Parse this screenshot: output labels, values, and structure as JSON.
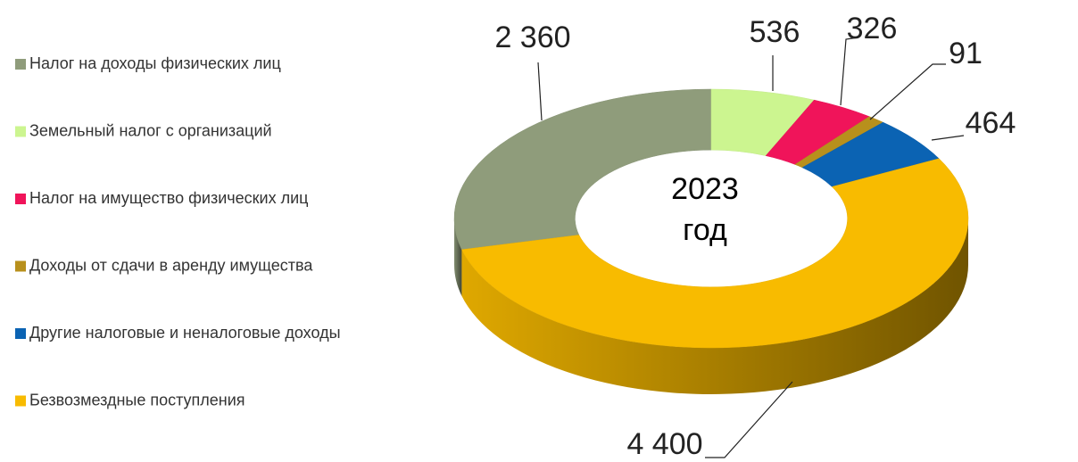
{
  "chart_data": {
    "type": "donut3d",
    "series": [
      {
        "name": "Налог на доходы физических лиц",
        "color": "#8f9c7b"
      },
      {
        "name": "Земельный налог с организаций",
        "color": "#ccf590"
      },
      {
        "name": "Налог на имущество физических лиц",
        "color": "#f0145a"
      },
      {
        "name": "Доходы от сдачи в аренду имущества",
        "color": "#b8901c"
      },
      {
        "name": "Другие налоговые и неналоговые доходы",
        "color": "#0b63b3"
      },
      {
        "name": "Безвозмездные поступления",
        "color": "#f8bb00"
      }
    ],
    "values": [
      2360,
      536,
      326,
      91,
      464,
      4400
    ],
    "value_labels": [
      "2 360",
      "536",
      "326",
      "91",
      "464",
      "4 400"
    ],
    "center_label": [
      "2023",
      "год"
    ],
    "legend": "left"
  }
}
